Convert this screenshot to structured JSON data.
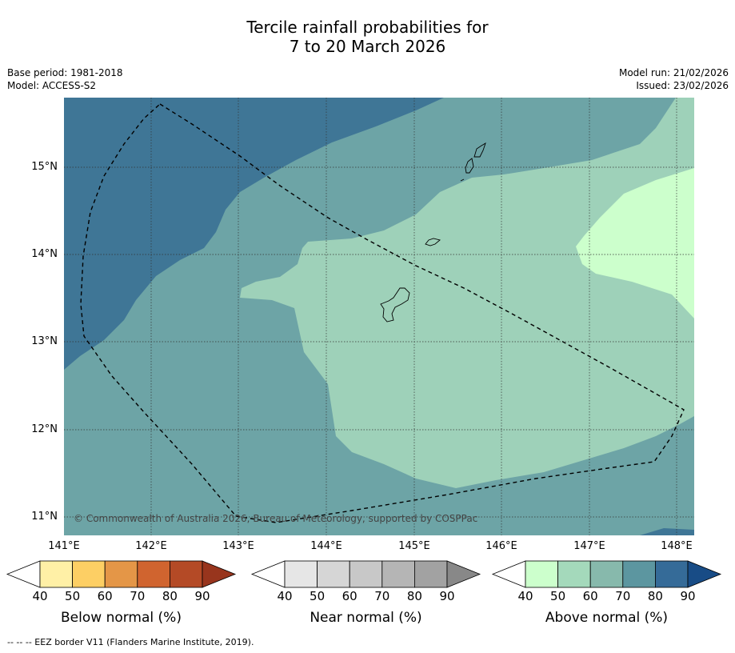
{
  "title_line1": "Tercile rainfall probabilities for",
  "title_line2": "7 to 20 March 2026",
  "base_period": "Base period: 1981-2018",
  "model": "Model: ACCESS-S2",
  "model_run": "Model run: 21/02/2026",
  "issued": "Issued: 23/02/2026",
  "copyright": "© Commonwealth of Australia 2026, Bureau of Meteorology, supported by COSPPac",
  "footnote": "--  --  -- EEZ border V11 (Flanders Marine Institute, 2019).",
  "lat_labels": [
    "15°N",
    "14°N",
    "13°N",
    "12°N",
    "11°N"
  ],
  "lon_labels": [
    "141°E",
    "142°E",
    "143°E",
    "144°E",
    "145°E",
    "146°E",
    "147°E",
    "148°E"
  ],
  "colorbars": [
    {
      "title": "Below normal (%)",
      "ticks": [
        "40",
        "50",
        "60",
        "70",
        "80",
        "90"
      ],
      "colors": [
        "#fff0a6",
        "#fdcf64",
        "#e49647",
        "#d0642f",
        "#b44a26",
        "#98351d"
      ]
    },
    {
      "title": "Near normal (%)",
      "ticks": [
        "40",
        "50",
        "60",
        "70",
        "80",
        "90"
      ],
      "colors": [
        "#e6e6e6",
        "#d6d6d6",
        "#c8c8c8",
        "#b5b5b5",
        "#a2a2a2",
        "#888888"
      ]
    },
    {
      "title": "Above normal (%)",
      "ticks": [
        "40",
        "50",
        "60",
        "70",
        "80",
        "90"
      ],
      "colors": [
        "#ccffcc",
        "#a4d9bb",
        "#87b9ac",
        "#5c96a0",
        "#356b98",
        "#184c86"
      ]
    }
  ],
  "map_colors": {
    "c40": "#ccffcc",
    "c50": "#9ed1b9",
    "c60": "#6da4a6",
    "c70": "#3f7696"
  }
}
